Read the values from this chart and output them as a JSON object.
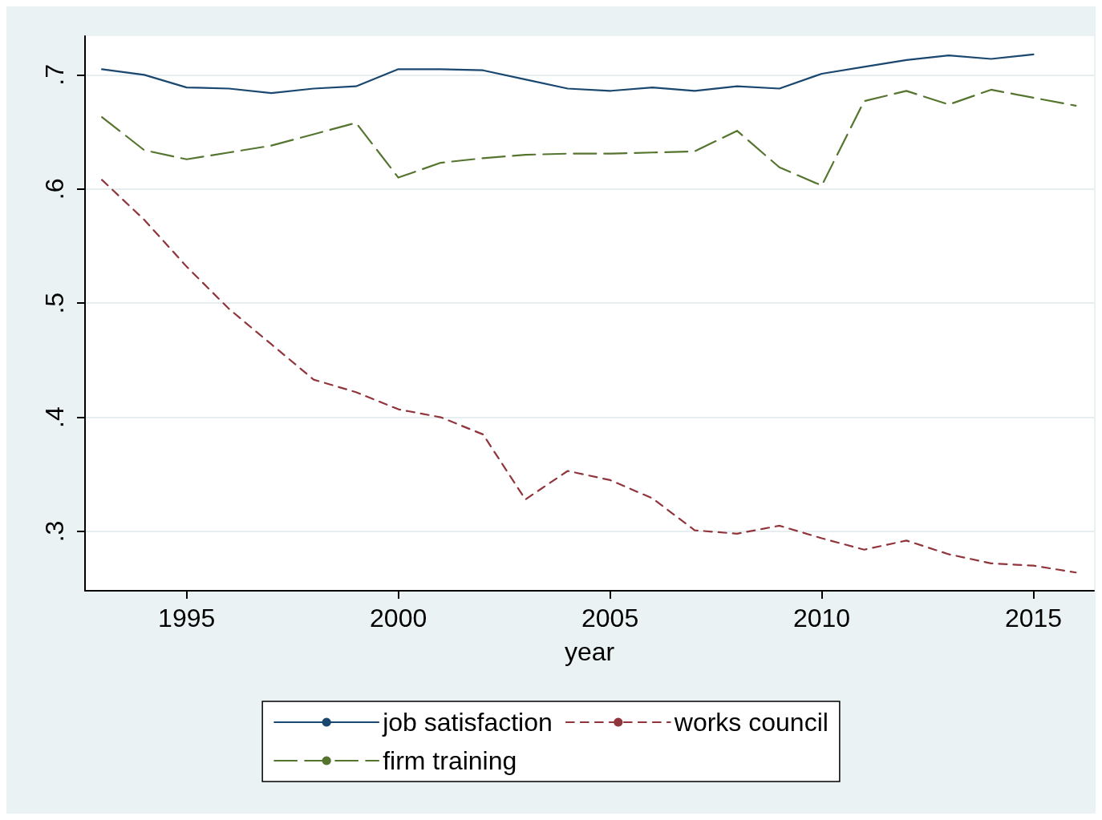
{
  "chart_data": {
    "type": "line",
    "xlabel": "year",
    "x": [
      1993,
      1994,
      1995,
      1996,
      1997,
      1998,
      1999,
      2000,
      2001,
      2002,
      2003,
      2004,
      2005,
      2006,
      2007,
      2008,
      2009,
      2010,
      2011,
      2012,
      2013,
      2014,
      2015,
      2016
    ],
    "xlim": [
      1992.6,
      2016.43
    ],
    "xticks": [
      1995,
      2000,
      2005,
      2010,
      2015
    ],
    "ylim": [
      0.248,
      0.734
    ],
    "yticks": [
      {
        "value": 0.3,
        "label": ".3"
      },
      {
        "value": 0.4,
        "label": ".4"
      },
      {
        "value": 0.5,
        "label": ".5"
      },
      {
        "value": 0.6,
        "label": ".6"
      },
      {
        "value": 0.7,
        "label": ".7"
      }
    ],
    "grid": "y",
    "legend": "bottom",
    "marker": "none",
    "series": [
      {
        "name": "job satisfaction",
        "color": "#1a476f",
        "line_style": "solid",
        "values": [
          0.705,
          0.7,
          0.689,
          0.688,
          0.684,
          0.688,
          0.69,
          0.705,
          0.705,
          0.704,
          0.696,
          0.688,
          0.686,
          0.689,
          0.686,
          0.69,
          0.688,
          0.701,
          0.707,
          0.713,
          0.717,
          0.714,
          0.718,
          null
        ]
      },
      {
        "name": "works council",
        "color": "#90353b",
        "line_style": "dashed",
        "values": [
          0.608,
          0.573,
          0.532,
          0.495,
          0.464,
          0.433,
          0.422,
          0.407,
          0.4,
          0.385,
          0.328,
          0.353,
          0.345,
          0.329,
          0.301,
          0.298,
          0.305,
          0.294,
          0.284,
          0.292,
          0.28,
          0.272,
          0.27,
          0.264
        ]
      },
      {
        "name": "firm training",
        "color": "#55752f",
        "line_style": "longdash",
        "values": [
          0.663,
          0.634,
          0.626,
          0.632,
          0.638,
          0.648,
          0.658,
          0.61,
          0.623,
          0.627,
          0.63,
          0.631,
          0.631,
          0.632,
          0.633,
          0.651,
          0.619,
          0.603,
          0.677,
          0.686,
          0.674,
          0.687,
          0.68,
          0.673
        ]
      }
    ]
  }
}
